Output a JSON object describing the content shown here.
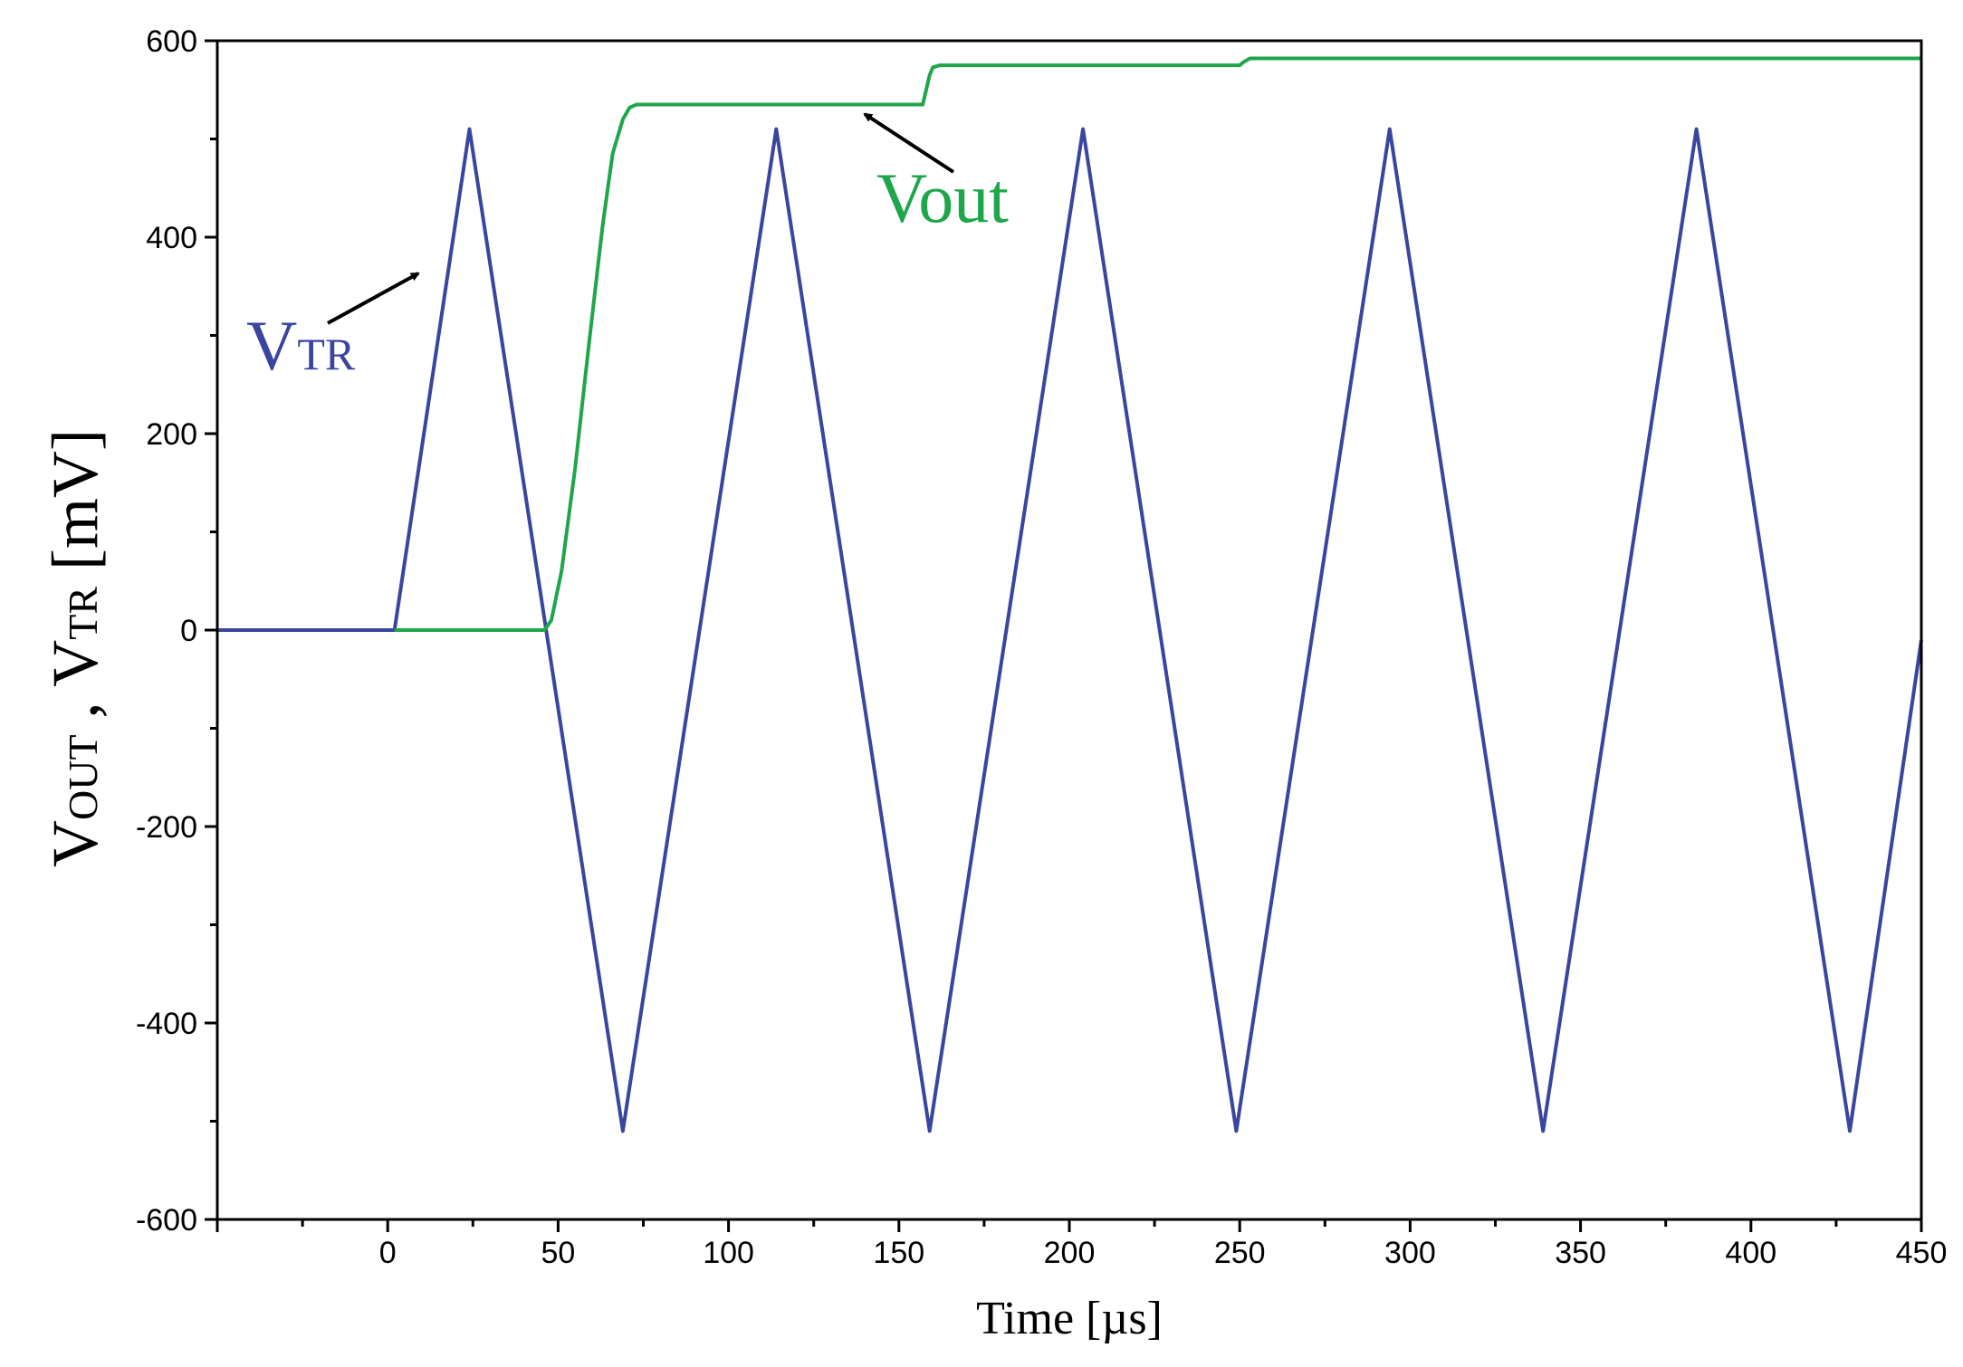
{
  "chart_data": {
    "type": "line",
    "xlabel": "Time [µs]",
    "ylabel": {
      "parts": [
        {
          "text": "V",
          "sub": false
        },
        {
          "text": "OUT",
          "sub": true
        },
        {
          "text": " , V",
          "sub": false
        },
        {
          "text": "TR",
          "sub": true
        },
        {
          "text": " [mV]",
          "sub": false
        }
      ]
    },
    "xlim": [
      -50,
      450
    ],
    "ylim": [
      -600,
      600
    ],
    "x_ticks": [
      0,
      50,
      100,
      150,
      200,
      250,
      300,
      350,
      400,
      450
    ],
    "x_minor_ticks": [
      -25,
      25,
      75,
      125,
      175,
      225,
      275,
      325,
      375,
      425
    ],
    "x_tick_labels": [
      "0",
      "50",
      "100",
      "150",
      "200",
      "250",
      "300",
      "350",
      "400",
      "450"
    ],
    "y_ticks": [
      -600,
      -400,
      -200,
      0,
      200,
      400,
      600
    ],
    "y_minor_ticks": [
      -500,
      -300,
      -100,
      100,
      300,
      500
    ],
    "y_tick_labels": [
      "-600",
      "-400",
      "-200",
      "0",
      "200",
      "400",
      "600"
    ],
    "grid": false,
    "series": [
      {
        "name": "VTR",
        "color": "#3a45a0",
        "x": [
          -50,
          2,
          24,
          69,
          114,
          159,
          204,
          249,
          294,
          339,
          384,
          429,
          450
        ],
        "y": [
          0,
          0,
          510,
          -510,
          510,
          -510,
          510,
          -510,
          510,
          -510,
          510,
          -510,
          -10
        ]
      },
      {
        "name": "Vout",
        "color": "#1fa64a",
        "x": [
          2,
          46,
          48,
          51,
          55,
          59,
          63,
          66,
          69,
          71,
          73,
          75,
          157,
          158,
          159,
          160,
          162,
          250,
          251,
          252,
          253,
          450
        ],
        "y": [
          0,
          0,
          10,
          60,
          165,
          290,
          410,
          485,
          520,
          532,
          535,
          535,
          535,
          550,
          565,
          573,
          575,
          575,
          578,
          580,
          582,
          582
        ]
      }
    ],
    "annotations": [
      {
        "label_parts": [
          {
            "text": "V",
            "sub": false
          },
          {
            "text": "TR",
            "sub": true
          }
        ],
        "color": "#3a45a0",
        "series": "VTR"
      },
      {
        "label_parts": [
          {
            "text": "Vout",
            "sub": false
          }
        ],
        "color": "#1fa64a",
        "series": "Vout"
      }
    ]
  }
}
